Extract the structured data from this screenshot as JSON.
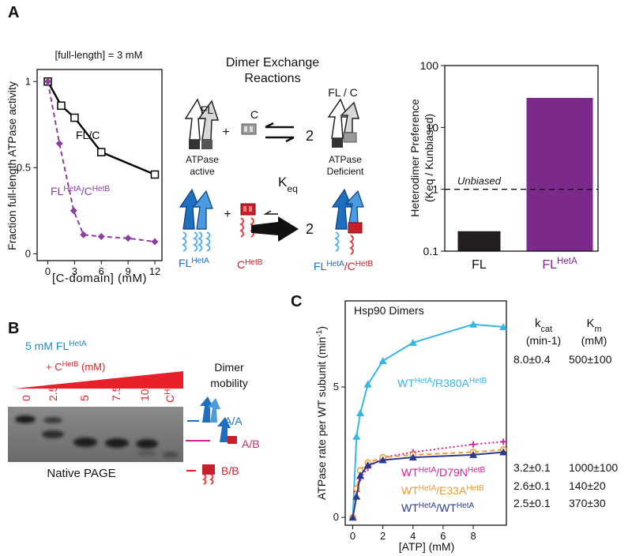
{
  "panel_labels": [
    "A",
    "B",
    "C"
  ],
  "exchange_diagram": {
    "title": [
      "Dimer Exchange",
      "Reactions"
    ],
    "top": {
      "left": "FL",
      "plus": "+",
      "right": "C",
      "product_count": "2",
      "product": "FL / C",
      "left_caption": [
        "ATPase",
        "active"
      ],
      "right_caption": [
        "ATPase",
        "Deficient"
      ]
    },
    "keq": [
      "K",
      "eq"
    ],
    "bottom": {
      "left": [
        "FL",
        "HetA"
      ],
      "plus": "+",
      "right": [
        "C",
        "HetB"
      ],
      "product_count": "2",
      "product": [
        "FL",
        "HetA",
        "/C",
        "HetB"
      ]
    }
  },
  "gel": {
    "title": [
      "5 mM FL",
      "HetA"
    ],
    "titrant": [
      "+ C",
      "HetB",
      " (mM)"
    ],
    "lanes": [
      "0",
      "2.5",
      "5",
      "7.5",
      "10"
    ],
    "control": [
      "C",
      "Het B"
    ],
    "mobility_title": [
      "Dimer",
      "mobility"
    ],
    "bands": [
      "A/A",
      "A/B",
      "B/B"
    ],
    "caption": "Native PAGE"
  },
  "chart_data": [
    {
      "type": "scatter",
      "title": "[full-length] = 3 mM",
      "x_label": "[C-domain] (mM)",
      "y_label": "Fraction full-length ATPase activity",
      "xlim": [
        -1.2,
        12.8
      ],
      "ylim": [
        -0.04,
        1.07
      ],
      "xticks": [
        0,
        3,
        6,
        9,
        12
      ],
      "yticks": [
        0,
        0.5,
        1
      ],
      "series": [
        {
          "name": [
            "FL/C"
          ],
          "color": "#000000",
          "marker": "square",
          "line": "solid",
          "x": [
            0,
            1.5,
            3,
            6,
            12
          ],
          "values": [
            1,
            0.86,
            0.79,
            0.59,
            0.46
          ]
        },
        {
          "name": [
            "FL",
            "HetA",
            "/C",
            "HetB"
          ],
          "color": "#8b3fa0",
          "marker": "diamond",
          "line": "dashed",
          "x": [
            0,
            1.3,
            2.9,
            4,
            6,
            9,
            12
          ],
          "values": [
            1,
            0.64,
            0.25,
            0.11,
            0.1,
            0.09,
            0.07
          ]
        }
      ]
    },
    {
      "type": "bar",
      "log_scale": true,
      "y_label": [
        "Heterodimer Preference",
        "(Keq / Kunbiased)"
      ],
      "ylim": [
        0.1,
        100
      ],
      "yticks": [
        0.1,
        1,
        10,
        100
      ],
      "categories": [
        [
          "FL"
        ],
        [
          "FL",
          "HetA"
        ]
      ],
      "values": [
        0.21,
        30
      ],
      "colors": [
        "#231f20",
        "#7b2a8c"
      ],
      "reference_line": {
        "value": 1,
        "label": "Unbiased"
      }
    },
    {
      "type": "scatter",
      "title": "Hsp90 Dimers",
      "x_label": "[ATP] (mM)",
      "y_label": [
        "ATPase rate per WT subunit (min",
        "-1",
        ")"
      ],
      "xlim": [
        -0.5,
        10.2
      ],
      "ylim": [
        -0.3,
        8.3
      ],
      "xticks": [
        0,
        2,
        4,
        6,
        8
      ],
      "yticks": [
        0,
        5
      ],
      "series": [
        {
          "name": [
            "WT",
            "HetA",
            "/R380A",
            "HetB"
          ],
          "color": "#35b6e5",
          "marker": "triangle",
          "line": "solid",
          "x": [
            0,
            0.25,
            0.5,
            1,
            2,
            4,
            8,
            10
          ],
          "values": [
            0,
            3.1,
            4.0,
            5.1,
            6.0,
            6.7,
            7.4,
            7.3
          ]
        },
        {
          "name": [
            "WT",
            "HetA",
            "/D79N",
            "HetB"
          ],
          "color": "#d6209a",
          "marker": "plus",
          "line": "dotted",
          "x": [
            0,
            0.25,
            0.5,
            1,
            2,
            4,
            8,
            10
          ],
          "values": [
            0,
            1.0,
            1.5,
            1.9,
            2.3,
            2.5,
            2.8,
            2.9
          ]
        },
        {
          "name": [
            "WT",
            "HetA",
            "/E33A",
            "HetB"
          ],
          "color": "#f39a2f",
          "marker": "circle",
          "line": "dashed",
          "x": [
            0,
            0.25,
            0.5,
            1,
            2,
            4,
            8,
            10
          ],
          "values": [
            0,
            1.1,
            1.8,
            2.1,
            2.3,
            2.4,
            2.5,
            2.6
          ]
        },
        {
          "name": [
            "WT",
            "HetA",
            "/WT",
            "HetA"
          ],
          "color": "#2a3b8f",
          "marker": "triangle",
          "line": "solid",
          "x": [
            0,
            0.25,
            0.5,
            1,
            2,
            4,
            8,
            10
          ],
          "values": [
            0,
            0.8,
            1.6,
            2.0,
            2.2,
            2.3,
            2.4,
            2.5
          ]
        }
      ],
      "table": {
        "columns": [
          {
            "name": [
              "k",
              "cat"
            ],
            "unit": "(min-1)"
          },
          {
            "name": [
              "K",
              "m"
            ],
            "unit": "(mM)"
          }
        ],
        "rows": [
          [
            "8.0±0.4",
            "500±100"
          ],
          [
            "3.2±0.1",
            "1000±100"
          ],
          [
            "2.6±0.1",
            "140±20"
          ],
          [
            "2.5±0.1",
            "370±30"
          ]
        ]
      }
    }
  ]
}
